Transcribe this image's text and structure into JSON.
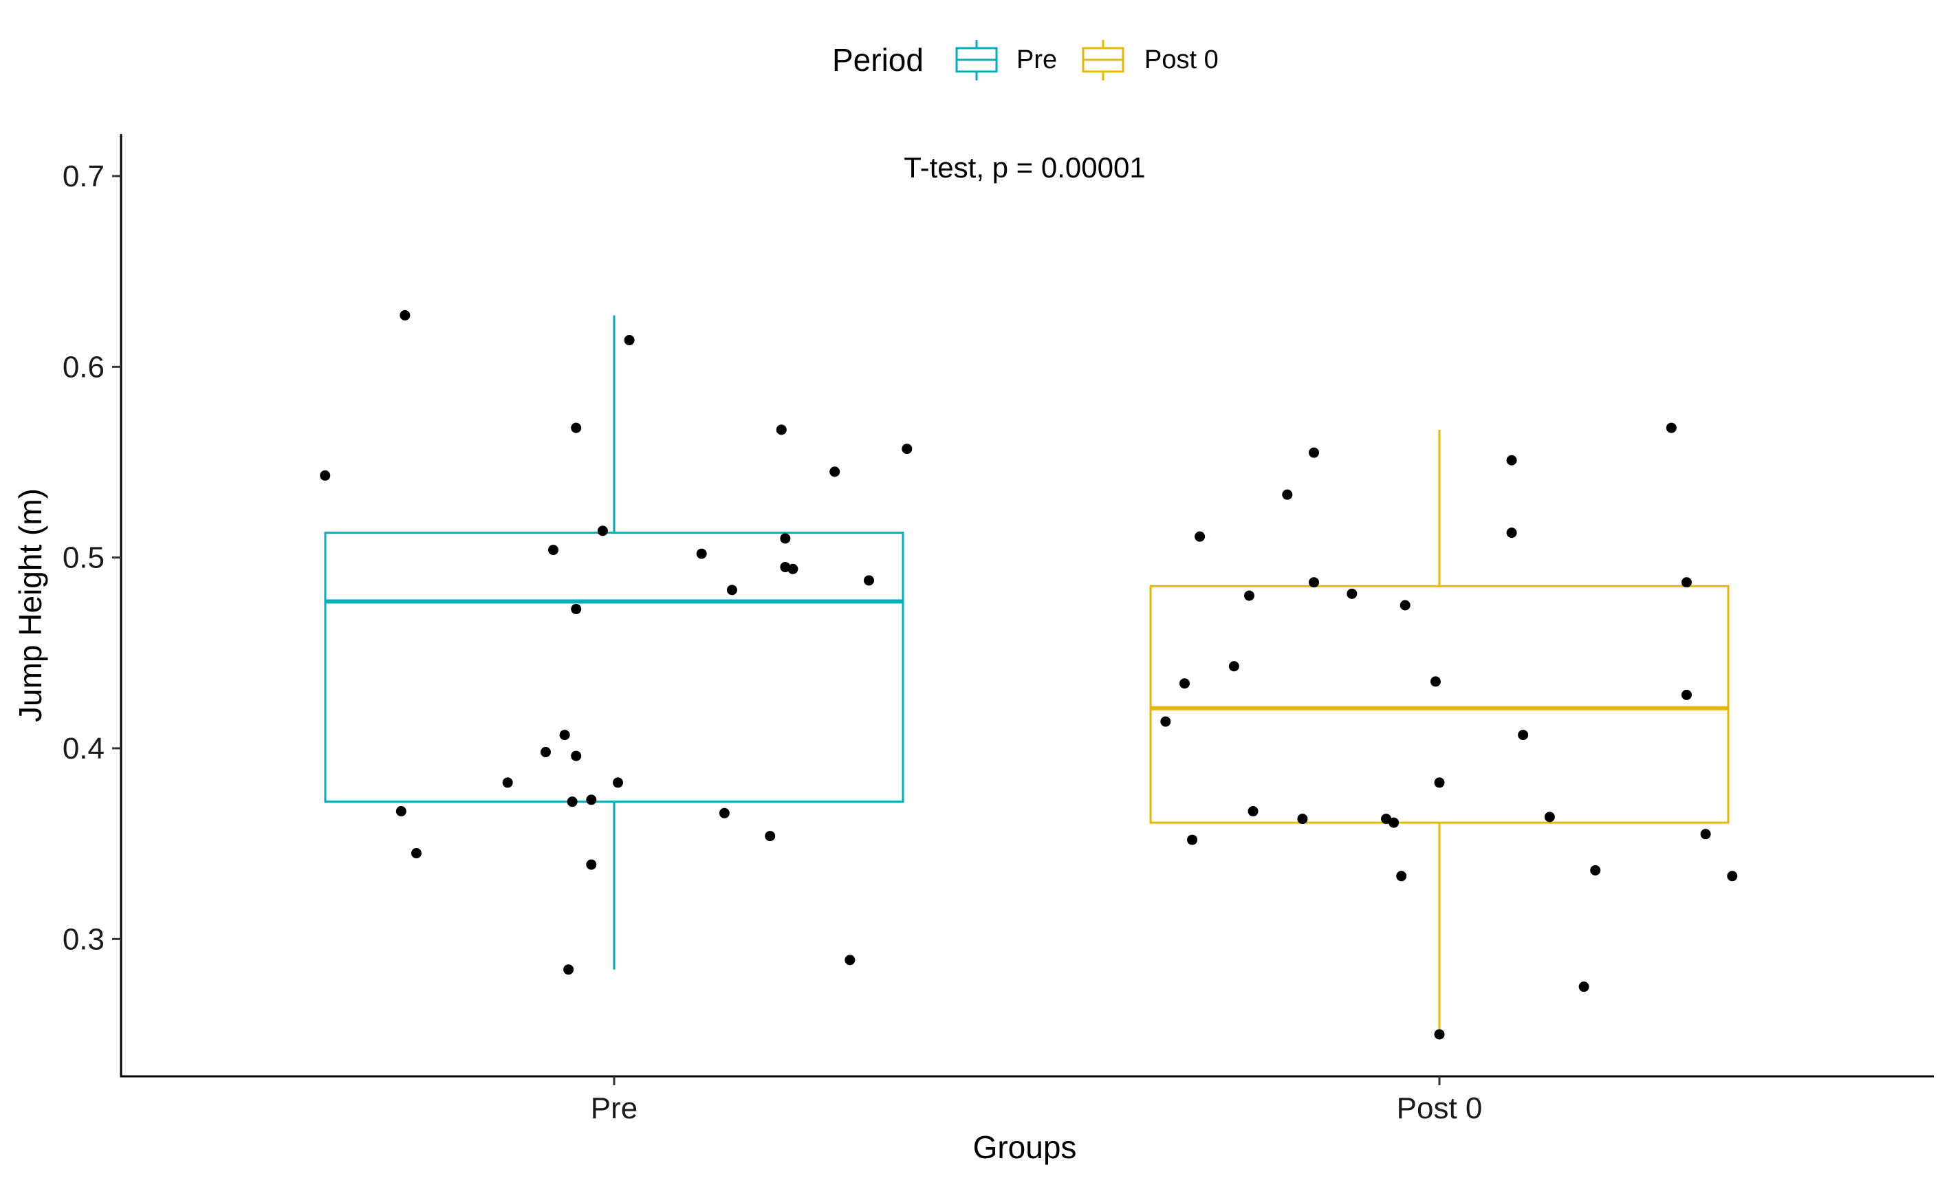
{
  "chart_data": {
    "type": "box",
    "xlabel": "Groups",
    "ylabel": "Jump Height (m)",
    "ylim": [
      0.228,
      0.722
    ],
    "yticks": [
      "0.3",
      "0.4",
      "0.5",
      "0.6",
      "0.7"
    ],
    "ytick_values": [
      0.3,
      0.4,
      0.5,
      0.6,
      0.7
    ],
    "categories": [
      "Pre",
      "Post 0"
    ],
    "annotation": "T-test, p = 0.00001",
    "grid": false,
    "legend": {
      "title": "Period",
      "placement": "top",
      "entries": [
        {
          "label": "Pre",
          "color": "#00AFBB"
        },
        {
          "label": "Post 0",
          "color": "#E7B800"
        }
      ]
    },
    "series": [
      {
        "category": "Pre",
        "color": "#00AFBB",
        "box": {
          "whisker_low": 0.284,
          "q1": 0.372,
          "median": 0.477,
          "q3": 0.513,
          "whisker_high": 0.627
        },
        "points": [
          {
            "x": -0.76,
            "y": 0.543
          },
          {
            "x": -0.55,
            "y": 0.627
          },
          {
            "x": -0.56,
            "y": 0.367
          },
          {
            "x": -0.52,
            "y": 0.345
          },
          {
            "x": -0.28,
            "y": 0.382
          },
          {
            "x": -0.18,
            "y": 0.398
          },
          {
            "x": -0.16,
            "y": 0.504
          },
          {
            "x": -0.13,
            "y": 0.407
          },
          {
            "x": -0.12,
            "y": 0.284
          },
          {
            "x": -0.11,
            "y": 0.372
          },
          {
            "x": -0.1,
            "y": 0.568
          },
          {
            "x": -0.1,
            "y": 0.396
          },
          {
            "x": -0.1,
            "y": 0.473
          },
          {
            "x": -0.06,
            "y": 0.373
          },
          {
            "x": -0.06,
            "y": 0.339
          },
          {
            "x": -0.03,
            "y": 0.514
          },
          {
            "x": 0.01,
            "y": 0.382
          },
          {
            "x": 0.04,
            "y": 0.614
          },
          {
            "x": 0.23,
            "y": 0.502
          },
          {
            "x": 0.29,
            "y": 0.366
          },
          {
            "x": 0.31,
            "y": 0.483
          },
          {
            "x": 0.41,
            "y": 0.354
          },
          {
            "x": 0.44,
            "y": 0.567
          },
          {
            "x": 0.45,
            "y": 0.51
          },
          {
            "x": 0.45,
            "y": 0.495
          },
          {
            "x": 0.47,
            "y": 0.494
          },
          {
            "x": 0.58,
            "y": 0.545
          },
          {
            "x": 0.62,
            "y": 0.289
          },
          {
            "x": 0.67,
            "y": 0.488
          },
          {
            "x": 0.77,
            "y": 0.557
          }
        ]
      },
      {
        "category": "Post 0",
        "color": "#E7B800",
        "box": {
          "whisker_low": 0.25,
          "q1": 0.361,
          "median": 0.421,
          "q3": 0.485,
          "whisker_high": 0.567
        },
        "points": [
          {
            "x": -0.72,
            "y": 0.414
          },
          {
            "x": -0.67,
            "y": 0.434
          },
          {
            "x": -0.65,
            "y": 0.352
          },
          {
            "x": -0.63,
            "y": 0.511
          },
          {
            "x": -0.54,
            "y": 0.443
          },
          {
            "x": -0.5,
            "y": 0.48
          },
          {
            "x": -0.49,
            "y": 0.367
          },
          {
            "x": -0.4,
            "y": 0.533
          },
          {
            "x": -0.36,
            "y": 0.363
          },
          {
            "x": -0.33,
            "y": 0.555
          },
          {
            "x": -0.33,
            "y": 0.487
          },
          {
            "x": -0.23,
            "y": 0.481
          },
          {
            "x": -0.14,
            "y": 0.363
          },
          {
            "x": -0.12,
            "y": 0.361
          },
          {
            "x": -0.1,
            "y": 0.333
          },
          {
            "x": -0.09,
            "y": 0.475
          },
          {
            "x": -0.01,
            "y": 0.435
          },
          {
            "x": 0.0,
            "y": 0.382
          },
          {
            "x": 0.0,
            "y": 0.25
          },
          {
            "x": 0.19,
            "y": 0.551
          },
          {
            "x": 0.19,
            "y": 0.513
          },
          {
            "x": 0.22,
            "y": 0.407
          },
          {
            "x": 0.29,
            "y": 0.364
          },
          {
            "x": 0.38,
            "y": 0.275
          },
          {
            "x": 0.41,
            "y": 0.336
          },
          {
            "x": 0.61,
            "y": 0.568
          },
          {
            "x": 0.65,
            "y": 0.487
          },
          {
            "x": 0.65,
            "y": 0.428
          },
          {
            "x": 0.7,
            "y": 0.355
          },
          {
            "x": 0.77,
            "y": 0.333
          }
        ]
      }
    ]
  }
}
